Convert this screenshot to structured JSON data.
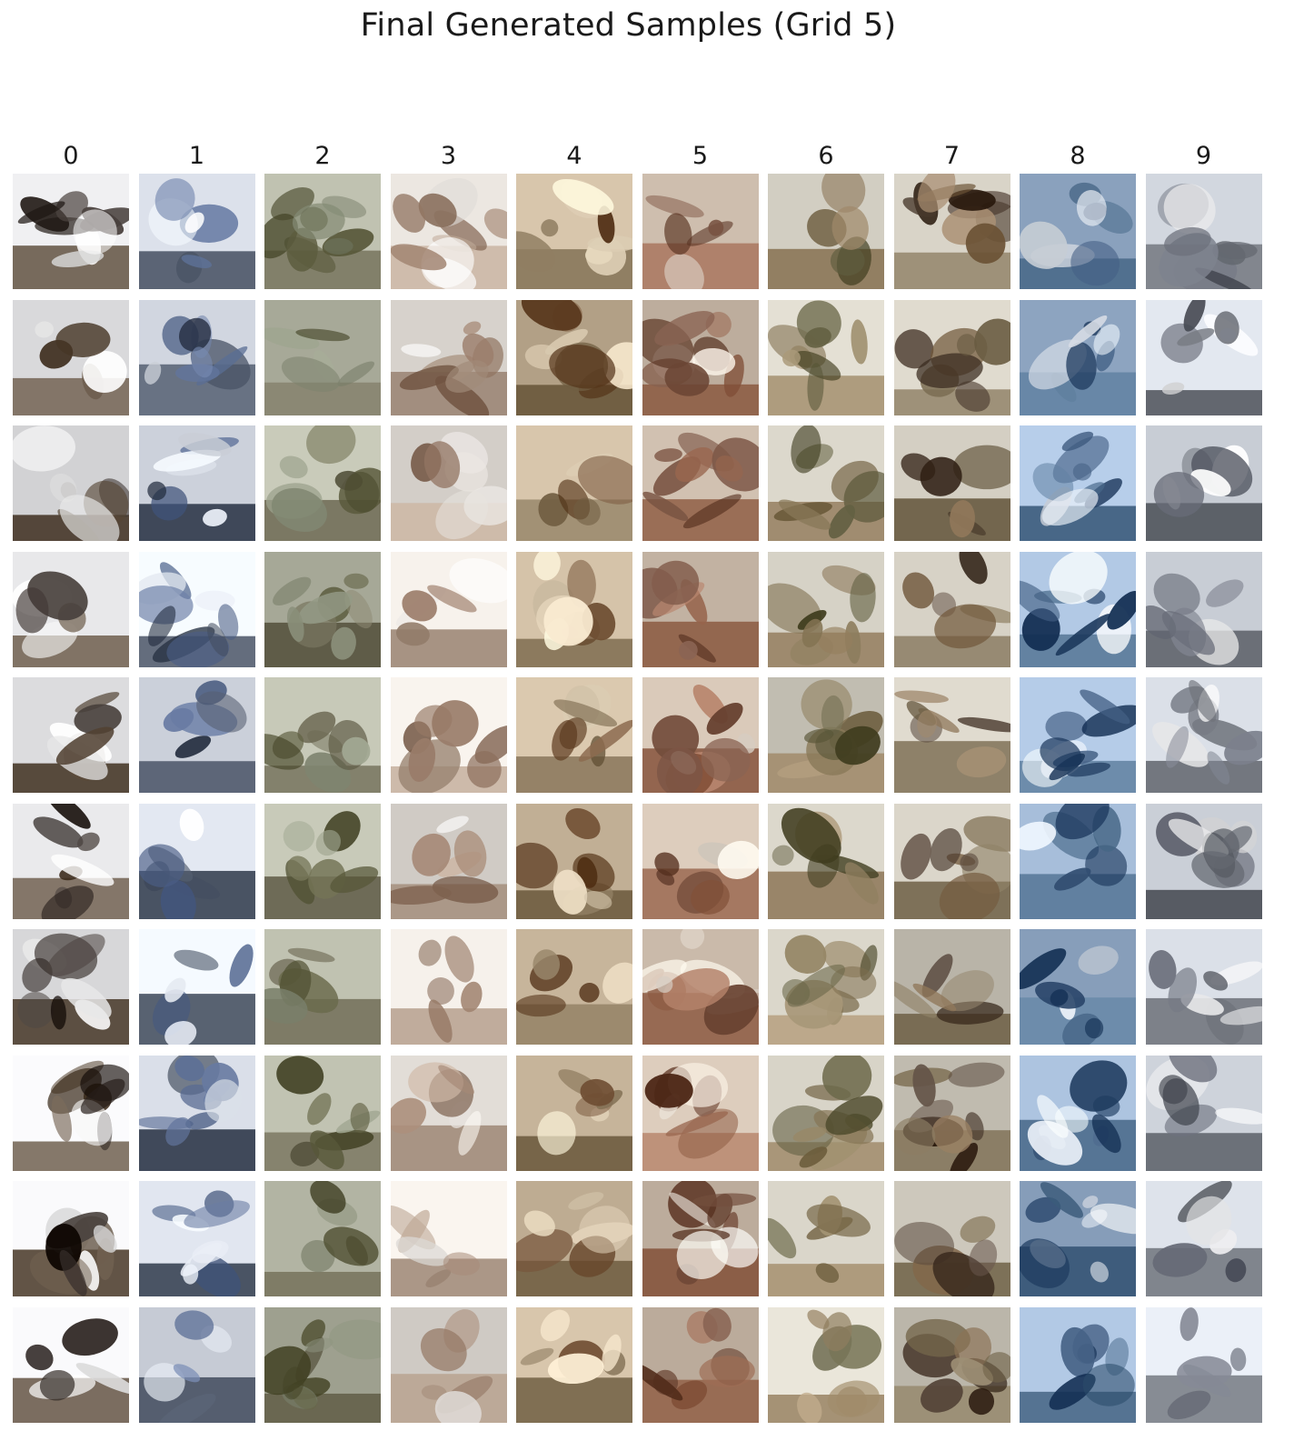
{
  "figure": {
    "title": "Final Generated Samples (Grid 5)",
    "column_labels": [
      "0",
      "1",
      "2",
      "3",
      "4",
      "5",
      "6",
      "7",
      "8",
      "9"
    ],
    "rows": 10,
    "columns": 10,
    "columns_palette": [
      {
        "sky": "#e8e8ea",
        "main": "#2e2622",
        "accent": "#f4f4f4",
        "ground": "#5a4a3a"
      },
      {
        "sky": "#dfe4ee",
        "main": "#5c6f96",
        "accent": "#e9eef6",
        "ground": "#3a4456"
      },
      {
        "sky": "#b7b9a8",
        "main": "#5a5a3c",
        "accent": "#8f9580",
        "ground": "#6e6b55"
      },
      {
        "sky": "#e7e2dc",
        "main": "#8a6d5a",
        "accent": "#f2eeea",
        "ground": "#b09a88"
      },
      {
        "sky": "#c9b79d",
        "main": "#6b4a2f",
        "accent": "#e6d7bd",
        "ground": "#7c6a4e"
      },
      {
        "sky": "#d4c4b4",
        "main": "#6a4433",
        "accent": "#efe6db",
        "ground": "#9c6a52"
      },
      {
        "sky": "#d6d2c6",
        "main": "#5d5a3c",
        "accent": "#8a7a5a",
        "ground": "#a08a6a"
      },
      {
        "sky": "#c9c4b8",
        "main": "#4a3a2e",
        "accent": "#8c7356",
        "ground": "#7a6c52"
      },
      {
        "sky": "#9fb6d2",
        "main": "#2e4a6e",
        "accent": "#e8eef6",
        "ground": "#4a6a8a"
      },
      {
        "sky": "#dde2ea",
        "main": "#6a6e7a",
        "accent": "#f2f2f4",
        "ground": "#5a5e66"
      }
    ]
  }
}
